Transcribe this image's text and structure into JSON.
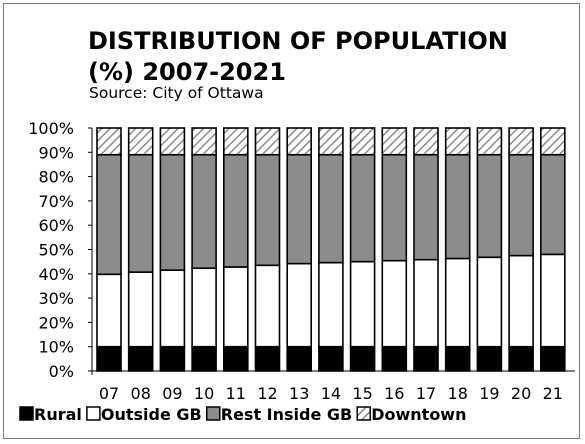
{
  "chart_data": {
    "type": "bar",
    "stacked": true,
    "title_line1": "DISTRIBUTION OF POPULATION",
    "title_line2": "(%)  2007-2021",
    "subtitle": "Source: City of Ottawa",
    "categories": [
      "07",
      "08",
      "09",
      "10",
      "11",
      "12",
      "13",
      "14",
      "15",
      "16",
      "17",
      "18",
      "19",
      "20",
      "21"
    ],
    "ylim": [
      0,
      100
    ],
    "yticks": [
      "0%",
      "10%",
      "20%",
      "30%",
      "40%",
      "50%",
      "60%",
      "70%",
      "80%",
      "90%",
      "100%"
    ],
    "grid": false,
    "legend_position": "bottom",
    "series": [
      {
        "name": "Rural",
        "color": "#000000",
        "pattern": "solid",
        "values": [
          10,
          10,
          10,
          10,
          10,
          10,
          10,
          10,
          10,
          10,
          10,
          10,
          10,
          10,
          10
        ]
      },
      {
        "name": "Outside GB",
        "color": "#ffffff",
        "pattern": "solid",
        "values": [
          29.8,
          30.7,
          31.5,
          32.3,
          32.8,
          33.5,
          34.2,
          34.6,
          35,
          35.4,
          35.8,
          36.3,
          36.8,
          37.5,
          38
        ]
      },
      {
        "name": "Rest Inside GB",
        "color": "#8c8c8c",
        "pattern": "solid",
        "values": [
          49.2,
          48.3,
          47.5,
          46.7,
          46.2,
          45.5,
          44.8,
          44.4,
          44,
          43.6,
          43.2,
          42.7,
          42.2,
          41.5,
          41
        ]
      },
      {
        "name": "Downtown",
        "color": "#ffffff",
        "pattern": "hatch",
        "values": [
          11,
          11,
          11,
          11,
          11,
          11,
          11,
          11,
          11,
          11,
          11,
          11,
          11,
          11,
          11
        ]
      }
    ]
  }
}
